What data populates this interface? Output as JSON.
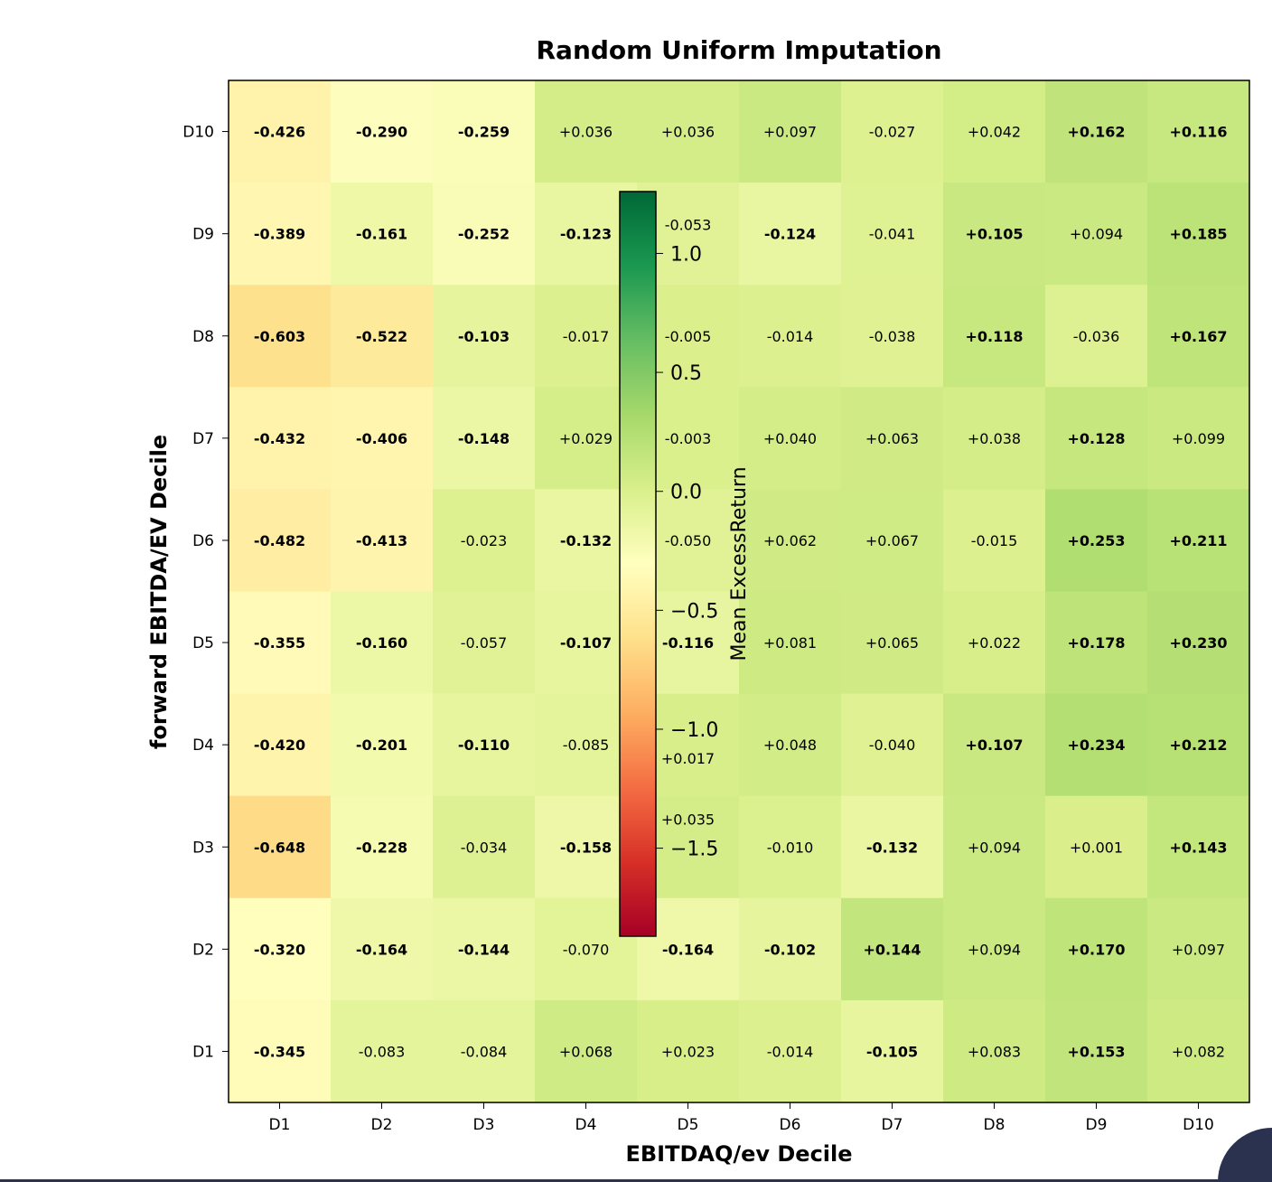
{
  "chart_data": {
    "type": "heatmap",
    "title": "Random Uniform Imputation",
    "xlabel": "EBITDAQ/ev Decile",
    "ylabel": "forward EBITDA/EV Decile",
    "x_categories": [
      "D1",
      "D2",
      "D3",
      "D4",
      "D5",
      "D6",
      "D7",
      "D8",
      "D9",
      "D10"
    ],
    "y_categories_top_to_bottom": [
      "D10",
      "D9",
      "D8",
      "D7",
      "D6",
      "D5",
      "D4",
      "D3",
      "D2",
      "D1"
    ],
    "values_top_to_bottom": [
      [
        "-0.426",
        "-0.290",
        "-0.259",
        "+0.036",
        "+0.036",
        "+0.097",
        "-0.027",
        "+0.042",
        "+0.162",
        "+0.116"
      ],
      [
        "-0.389",
        "-0.161",
        "-0.252",
        "-0.123",
        "-0.053",
        "-0.124",
        "-0.041",
        "+0.105",
        "+0.094",
        "+0.185"
      ],
      [
        "-0.603",
        "-0.522",
        "-0.103",
        "-0.017",
        "-0.005",
        "-0.014",
        "-0.038",
        "+0.118",
        "-0.036",
        "+0.167"
      ],
      [
        "-0.432",
        "-0.406",
        "-0.148",
        "+0.029",
        "-0.003",
        "+0.040",
        "+0.063",
        "+0.038",
        "+0.128",
        "+0.099"
      ],
      [
        "-0.482",
        "-0.413",
        "-0.023",
        "-0.132",
        "-0.050",
        "+0.062",
        "+0.067",
        "-0.015",
        "+0.253",
        "+0.211"
      ],
      [
        "-0.355",
        "-0.160",
        "-0.057",
        "-0.107",
        "-0.116",
        "+0.081",
        "+0.065",
        "+0.022",
        "+0.178",
        "+0.230"
      ],
      [
        "-0.420",
        "-0.201",
        "-0.110",
        "-0.085",
        "+0.017",
        "+0.048",
        "-0.040",
        "+0.107",
        "+0.234",
        "+0.212"
      ],
      [
        "-0.648",
        "-0.228",
        "-0.034",
        "-0.158",
        "+0.035",
        "-0.010",
        "-0.132",
        "+0.094",
        "+0.001",
        "+0.143"
      ],
      [
        "-0.320",
        "-0.164",
        "-0.144",
        "-0.070",
        "-0.164",
        "-0.102",
        "+0.144",
        "+0.094",
        "+0.170",
        "+0.097"
      ],
      [
        "-0.345",
        "-0.083",
        "-0.084",
        "+0.068",
        "+0.023",
        "-0.014",
        "-0.105",
        "+0.083",
        "+0.153",
        "+0.082"
      ]
    ],
    "colormap": "RdYlGn",
    "colorbar": {
      "label": "Mean ExcessReturn",
      "range": [
        -1.87,
        1.26
      ],
      "ticks": [
        1.0,
        0.5,
        0.0,
        -0.5,
        -1.0,
        -1.5
      ],
      "tick_labels": [
        "1.0",
        "0.5",
        "0.0",
        "−0.5",
        "−1.0",
        "−1.5"
      ]
    },
    "bold_threshold": 0.1
  }
}
